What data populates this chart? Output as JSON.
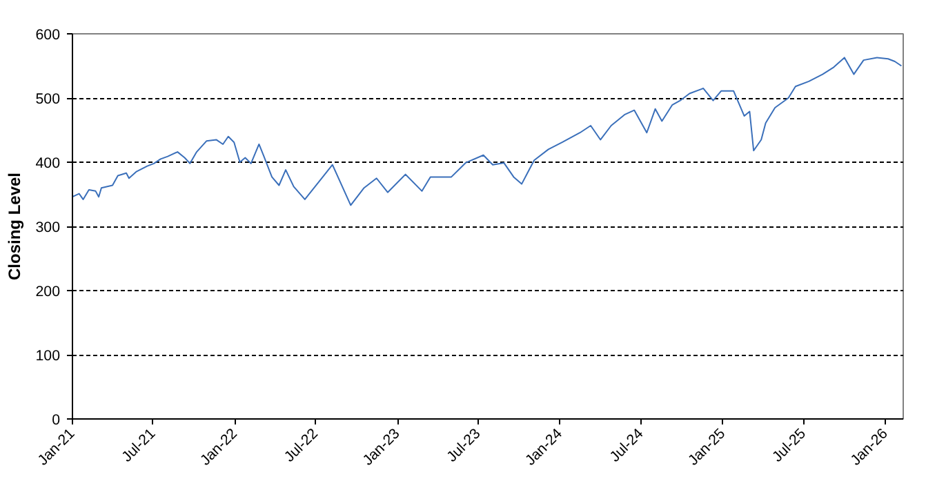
{
  "chart_data": {
    "type": "line",
    "ylabel": "Closing Level",
    "xlim": [
      "2021-01-01",
      "2026-02-10"
    ],
    "ylim": [
      0,
      600
    ],
    "yticks": [
      0,
      100,
      200,
      300,
      400,
      500,
      600
    ],
    "xticks": [
      {
        "value": "2021-01-01",
        "label": "Jan-21"
      },
      {
        "value": "2021-07-01",
        "label": "Jul-21"
      },
      {
        "value": "2022-01-01",
        "label": "Jan-22"
      },
      {
        "value": "2022-07-01",
        "label": "Jul-22"
      },
      {
        "value": "2023-01-01",
        "label": "Jan-23"
      },
      {
        "value": "2023-07-01",
        "label": "Jul-23"
      },
      {
        "value": "2024-01-01",
        "label": "Jan-24"
      },
      {
        "value": "2024-07-01",
        "label": "Jul-24"
      },
      {
        "value": "2025-01-01",
        "label": "Jan-25"
      },
      {
        "value": "2025-07-01",
        "label": "Jul-25"
      },
      {
        "value": "2026-01-01",
        "label": "Jan-26"
      }
    ],
    "grid": "y",
    "marker": "none",
    "line_style": "solid",
    "x": [
      "2021-01-01",
      "2021-01-16",
      "2021-01-25",
      "2021-02-07",
      "2021-02-22",
      "2021-03-01",
      "2021-03-07",
      "2021-04-01",
      "2021-04-13",
      "2021-05-02",
      "2021-05-08",
      "2021-05-24",
      "2021-06-18",
      "2021-07-03",
      "2021-07-18",
      "2021-08-03",
      "2021-08-25",
      "2021-09-10",
      "2021-09-22",
      "2021-10-07",
      "2021-10-29",
      "2021-11-20",
      "2021-12-05",
      "2021-12-17",
      "2021-12-30",
      "2022-01-12",
      "2022-01-24",
      "2022-02-06",
      "2022-02-24",
      "2022-03-06",
      "2022-03-25",
      "2022-04-10",
      "2022-04-25",
      "2022-05-13",
      "2022-06-07",
      "2022-08-08",
      "2022-09-18",
      "2022-10-18",
      "2022-11-15",
      "2022-12-10",
      "2023-01-19",
      "2023-02-25",
      "2023-03-16",
      "2023-05-02",
      "2023-06-03",
      "2023-07-13",
      "2023-08-03",
      "2023-08-28",
      "2023-09-19",
      "2023-10-07",
      "2023-11-04",
      "2023-12-06",
      "2024-01-06",
      "2024-02-15",
      "2024-03-10",
      "2024-04-01",
      "2024-04-25",
      "2024-05-25",
      "2024-06-16",
      "2024-07-14",
      "2024-08-02",
      "2024-08-17",
      "2024-09-09",
      "2024-09-27",
      "2024-10-18",
      "2024-11-18",
      "2024-12-10",
      "2024-12-28",
      "2025-01-25",
      "2025-02-18",
      "2025-03-02",
      "2025-03-11",
      "2025-03-28",
      "2025-04-07",
      "2025-04-28",
      "2025-05-28",
      "2025-06-13",
      "2025-07-13",
      "2025-08-13",
      "2025-09-07",
      "2025-10-01",
      "2025-10-22",
      "2025-11-13",
      "2025-12-13",
      "2026-01-07",
      "2026-01-22",
      "2026-02-06"
    ],
    "series": [
      {
        "color": "#3a6fba",
        "values": [
          346,
          351,
          342,
          357,
          355,
          346,
          360,
          364,
          379,
          383,
          375,
          385,
          394,
          398,
          405,
          409,
          416,
          407,
          398,
          416,
          433,
          435,
          428,
          440,
          431,
          400,
          407,
          398,
          428,
          411,
          377,
          364,
          388,
          362,
          342,
          396,
          333,
          360,
          375,
          353,
          381,
          355,
          377,
          377,
          399,
          411,
          396,
          399,
          377,
          366,
          403,
          420,
          431,
          446,
          457,
          435,
          457,
          474,
          481,
          446,
          483,
          464,
          489,
          496,
          507,
          515,
          496,
          511,
          511,
          472,
          479,
          418,
          435,
          461,
          485,
          500,
          518,
          526,
          537,
          548,
          563,
          537,
          559,
          563,
          561,
          557,
          550
        ]
      }
    ]
  }
}
